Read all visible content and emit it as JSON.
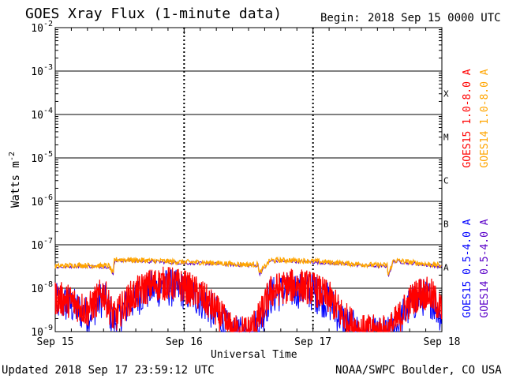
{
  "header": {
    "title": "GOES Xray Flux (1-minute data)",
    "begin_label": "Begin:",
    "begin_value": "2018 Sep 15 0000 UTC"
  },
  "footer": {
    "updated": "Updated 2018 Sep 17 23:59:12 UTC",
    "credit": "NOAA/SWPC Boulder, CO USA"
  },
  "colors": {
    "goes15_long": "#ff0000",
    "goes14_long": "#ffa500",
    "goes15_short": "#0000ff",
    "goes14_short": "#5a00c8"
  },
  "chart_data": {
    "type": "line",
    "title": "GOES Xray Flux (1-minute data)",
    "xlabel": "Universal Time",
    "ylabel": "Watts m",
    "ylabel_sup": "-2",
    "yscale": "log",
    "ylim": [
      1e-09,
      0.01
    ],
    "xlim": [
      "2018-09-15 00:00",
      "2018-09-18 00:00"
    ],
    "x_ticks": [
      "Sep 15",
      "Sep 16",
      "Sep 17",
      "Sep 18"
    ],
    "y_ticks": [
      {
        "base": "10",
        "exp": "-9"
      },
      {
        "base": "10",
        "exp": "-8"
      },
      {
        "base": "10",
        "exp": "-7"
      },
      {
        "base": "10",
        "exp": "-6"
      },
      {
        "base": "10",
        "exp": "-5"
      },
      {
        "base": "10",
        "exp": "-4"
      },
      {
        "base": "10",
        "exp": "-3"
      },
      {
        "base": "10",
        "exp": "-2"
      }
    ],
    "flare_classes": [
      "A",
      "B",
      "C",
      "M",
      "X"
    ],
    "legend": [
      {
        "label": "GOES15 1.0-8.0 A",
        "color": "#ff0000"
      },
      {
        "label": "GOES14 1.0-8.0 A",
        "color": "#ffa500"
      },
      {
        "label": "GOES15 0.5-4.0 A",
        "color": "#0000ff"
      },
      {
        "label": "GOES14 0.5-4.0 A",
        "color": "#5a00c8"
      }
    ],
    "legend_position": "right",
    "grid": true,
    "series": [
      {
        "name": "GOES15 1.0-8.0 A",
        "color": "#ff0000",
        "x_hours": [
          0,
          3,
          6,
          9,
          11,
          12,
          14,
          16,
          18,
          21,
          24,
          27,
          30,
          33,
          36,
          38,
          40,
          42,
          45,
          48,
          51,
          54,
          57,
          60,
          62,
          64,
          66,
          68,
          70,
          72
        ],
        "values": [
          6e-09,
          5e-09,
          3e-09,
          8e-09,
          2e-09,
          3e-09,
          6e-09,
          9e-09,
          1.2e-08,
          1.3e-08,
          1.1e-08,
          7e-09,
          3e-09,
          1e-09,
          1e-09,
          2e-09,
          8e-09,
          1e-08,
          1.2e-08,
          1e-08,
          6e-09,
          2e-09,
          1e-09,
          1e-09,
          1e-09,
          2e-09,
          5e-09,
          8e-09,
          7e-09,
          3e-09
        ]
      },
      {
        "name": "GOES14 1.0-8.0 A",
        "color": "#ffa500",
        "x_hours": [
          0,
          4,
          8,
          10,
          10.8,
          11,
          12,
          16,
          20,
          24,
          28,
          32,
          36,
          37.8,
          38,
          40,
          44,
          48,
          52,
          56,
          60,
          61.8,
          62,
          63,
          66,
          70,
          72
        ],
        "values": [
          3.2e-08,
          3.4e-08,
          3.3e-08,
          3.3e-08,
          2.1e-08,
          4.5e-08,
          4.6e-08,
          4.4e-08,
          4.2e-08,
          4e-08,
          3.9e-08,
          3.7e-08,
          3.5e-08,
          3.5e-08,
          2.2e-08,
          4.4e-08,
          4.4e-08,
          4.2e-08,
          3.9e-08,
          3.6e-08,
          3.4e-08,
          3.4e-08,
          2e-08,
          4.4e-08,
          4e-08,
          3.5e-08,
          3.3e-08
        ]
      }
    ]
  }
}
